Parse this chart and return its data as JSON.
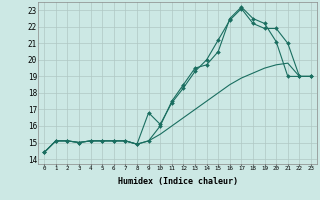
{
  "xlabel": "Humidex (Indice chaleur)",
  "ylabel": "",
  "background_color": "#cce8e4",
  "grid_color": "#b0c8c4",
  "line_color": "#1a6e60",
  "xlim": [
    -0.5,
    23.5
  ],
  "ylim": [
    13.7,
    23.5
  ],
  "yticks": [
    14,
    15,
    16,
    17,
    18,
    19,
    20,
    21,
    22,
    23
  ],
  "xticks": [
    0,
    1,
    2,
    3,
    4,
    5,
    6,
    7,
    8,
    9,
    10,
    11,
    12,
    13,
    14,
    15,
    16,
    17,
    18,
    19,
    20,
    21,
    22,
    23
  ],
  "line1_x": [
    0,
    1,
    2,
    3,
    4,
    5,
    6,
    7,
    8,
    9,
    10,
    11,
    12,
    13,
    14,
    15,
    16,
    17,
    18,
    19,
    20,
    21,
    22,
    23
  ],
  "line1_y": [
    14.4,
    15.1,
    15.1,
    15.0,
    15.1,
    15.1,
    15.1,
    15.1,
    14.9,
    15.1,
    16.0,
    17.5,
    18.5,
    19.5,
    19.7,
    20.5,
    22.5,
    23.2,
    22.5,
    22.2,
    21.1,
    19.0,
    19.0,
    19.0
  ],
  "line2_x": [
    0,
    1,
    2,
    3,
    4,
    5,
    6,
    7,
    8,
    9,
    10,
    11,
    12,
    13,
    14,
    15,
    16,
    17,
    18,
    19,
    20,
    21,
    22,
    23
  ],
  "line2_y": [
    14.4,
    15.1,
    15.1,
    15.0,
    15.1,
    15.1,
    15.1,
    15.1,
    14.9,
    16.8,
    16.1,
    17.4,
    18.3,
    19.3,
    20.0,
    21.2,
    22.4,
    23.1,
    22.2,
    21.9,
    21.9,
    21.0,
    19.0,
    19.0
  ],
  "line3_x": [
    0,
    1,
    2,
    3,
    4,
    5,
    6,
    7,
    8,
    9,
    10,
    11,
    12,
    13,
    14,
    15,
    16,
    17,
    18,
    19,
    20,
    21,
    22,
    23
  ],
  "line3_y": [
    14.4,
    15.1,
    15.1,
    15.0,
    15.1,
    15.1,
    15.1,
    15.1,
    14.9,
    15.1,
    15.5,
    16.0,
    16.5,
    17.0,
    17.5,
    18.0,
    18.5,
    18.9,
    19.2,
    19.5,
    19.7,
    19.8,
    19.0,
    19.0
  ]
}
